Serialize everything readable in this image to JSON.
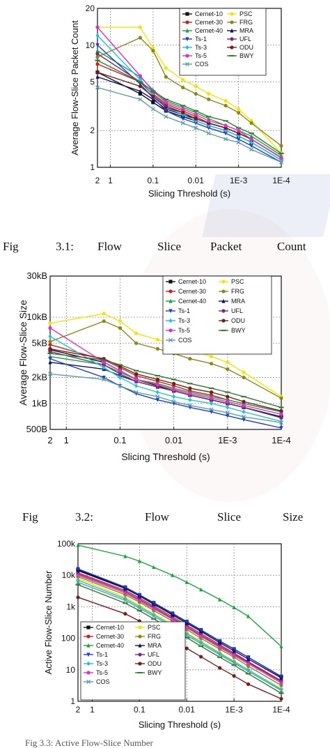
{
  "captions": [
    {
      "words": [
        "Fig",
        "3.1:",
        "Flow",
        "Slice",
        "Packet",
        "Count"
      ]
    },
    {
      "words": [
        "Fig",
        "3.2:",
        "Flow",
        "Slice",
        "Size"
      ]
    },
    {
      "words": [
        "Fig 3.3: Active Flow-Slice Number"
      ]
    }
  ],
  "chart_data": [
    {
      "type": "line",
      "ylabel": "Average Flow-Slice Packet Count",
      "xlabel": "Slicing Threshold (s)",
      "x_scale": "log-reversed",
      "y_scale": "log",
      "ylim": [
        1,
        20
      ],
      "xlim": [
        2,
        0.0001
      ],
      "x_ticks": [
        {
          "v": 2,
          "label": "2"
        },
        {
          "v": 1,
          "label": "1"
        },
        {
          "v": 0.1,
          "label": "0.1"
        },
        {
          "v": 0.01,
          "label": "0.01"
        },
        {
          "v": 0.001,
          "label": "1E-3"
        },
        {
          "v": 0.0001,
          "label": "1E-4"
        }
      ],
      "y_ticks": [
        {
          "v": 1,
          "label": "1"
        },
        {
          "v": 2,
          "label": "2"
        },
        {
          "v": 5,
          "label": "5"
        },
        {
          "v": 10,
          "label": "10"
        },
        {
          "v": 20,
          "label": "20"
        }
      ],
      "grid": true,
      "legend_position": "top-right",
      "legend_columns": 2,
      "x": [
        2,
        0.2,
        0.1,
        0.05,
        0.02,
        0.01,
        0.005,
        0.002,
        0.001,
        0.0005,
        0.0001
      ],
      "series": [
        {
          "name": "Cernet-10",
          "color": "#111111",
          "marker": "square",
          "values": [
            6.0,
            4.0,
            3.4,
            2.9,
            2.6,
            2.4,
            2.2,
            2.0,
            1.8,
            1.6,
            1.15
          ]
        },
        {
          "name": "PSC",
          "color": "#f2e600",
          "marker": "circle",
          "values": [
            14.0,
            14.0,
            9.5,
            6.5,
            5.2,
            4.6,
            4.0,
            3.5,
            3.0,
            2.4,
            1.3
          ]
        },
        {
          "name": "Cernet-30",
          "color": "#d81b1b",
          "marker": "circle",
          "values": [
            7.0,
            5.0,
            4.0,
            3.3,
            2.9,
            2.6,
            2.3,
            2.1,
            1.9,
            1.7,
            1.2
          ]
        },
        {
          "name": "FRG",
          "color": "#8a8a12",
          "marker": "circle",
          "values": [
            8.0,
            11.5,
            9.0,
            5.5,
            4.5,
            4.0,
            3.6,
            3.2,
            2.8,
            2.3,
            1.5
          ]
        },
        {
          "name": "Cernet-40",
          "color": "#14a83c",
          "marker": "triangle",
          "values": [
            9.0,
            5.5,
            4.3,
            3.5,
            3.1,
            2.8,
            2.5,
            2.2,
            2.0,
            1.8,
            1.25
          ]
        },
        {
          "name": "MRA",
          "color": "#101060",
          "marker": "triangle",
          "values": [
            5.5,
            4.2,
            3.6,
            3.0,
            2.7,
            2.5,
            2.3,
            2.1,
            1.9,
            1.7,
            1.2
          ]
        },
        {
          "name": "Ts-1",
          "color": "#1a3be0",
          "marker": "triangle-down",
          "values": [
            10.0,
            4.8,
            3.7,
            2.9,
            2.5,
            2.3,
            2.1,
            1.9,
            1.7,
            1.5,
            1.1
          ]
        },
        {
          "name": "UFL",
          "color": "#7a2a7a",
          "marker": "circle",
          "values": [
            8.5,
            5.0,
            3.9,
            3.2,
            2.8,
            2.5,
            2.3,
            2.1,
            1.9,
            1.7,
            1.2
          ]
        },
        {
          "name": "Ts-3",
          "color": "#16c8d8",
          "marker": "diamond",
          "values": [
            12.0,
            5.2,
            3.9,
            3.1,
            2.7,
            2.4,
            2.2,
            2.0,
            1.8,
            1.6,
            1.15
          ]
        },
        {
          "name": "ODU",
          "color": "#7a1a1a",
          "marker": "circle",
          "values": [
            6.0,
            4.6,
            3.8,
            3.1,
            2.8,
            2.5,
            2.3,
            2.1,
            1.9,
            1.7,
            1.2
          ]
        },
        {
          "name": "Ts-5",
          "color": "#e030d0",
          "marker": "circle",
          "values": [
            14.0,
            5.6,
            4.2,
            3.4,
            3.0,
            2.7,
            2.4,
            2.2,
            2.0,
            1.7,
            1.2
          ]
        },
        {
          "name": "BWY",
          "color": "#2e7a2e",
          "marker": "dash",
          "values": [
            7.5,
            5.0,
            4.2,
            3.6,
            3.2,
            2.9,
            2.6,
            2.4,
            2.1,
            1.9,
            1.3
          ]
        },
        {
          "name": "COS",
          "color": "#5aa0a0",
          "marker": "x",
          "values": [
            4.5,
            3.6,
            3.0,
            2.6,
            2.3,
            2.1,
            1.9,
            1.7,
            1.6,
            1.4,
            1.1
          ]
        }
      ]
    },
    {
      "type": "line",
      "ylabel": "Average Flow-Slice Size",
      "xlabel": "Slicing Threshold (s)",
      "x_scale": "log-reversed",
      "y_scale": "log",
      "ylim": [
        500,
        30000
      ],
      "xlim": [
        2,
        0.0001
      ],
      "x_ticks": [
        {
          "v": 2,
          "label": "2"
        },
        {
          "v": 1,
          "label": "1"
        },
        {
          "v": 0.1,
          "label": "0.1"
        },
        {
          "v": 0.01,
          "label": "0.01"
        },
        {
          "v": 0.001,
          "label": "1E-3"
        },
        {
          "v": 0.0001,
          "label": "1E-4"
        }
      ],
      "y_ticks": [
        {
          "v": 500,
          "label": "500B"
        },
        {
          "v": 1000,
          "label": "1kB"
        },
        {
          "v": 2000,
          "label": "2kB"
        },
        {
          "v": 5000,
          "label": "5kB"
        },
        {
          "v": 10000,
          "label": "10kB"
        },
        {
          "v": 30000,
          "label": "30kB"
        }
      ],
      "grid": true,
      "legend_position": "top-right",
      "legend_columns": 2,
      "x": [
        2,
        0.2,
        0.1,
        0.05,
        0.02,
        0.01,
        0.005,
        0.002,
        0.001,
        0.0005,
        0.0001
      ],
      "series": [
        {
          "name": "Cernet-10",
          "color": "#111111",
          "marker": "square",
          "values": [
            4200,
            3000,
            2400,
            1900,
            1600,
            1400,
            1250,
            1100,
            1000,
            900,
            700
          ]
        },
        {
          "name": "PSC",
          "color": "#f2e600",
          "marker": "circle",
          "values": [
            8500,
            11000,
            9000,
            6500,
            5500,
            4800,
            4200,
            3500,
            3000,
            2300,
            1200
          ]
        },
        {
          "name": "Cernet-30",
          "color": "#d81b1b",
          "marker": "circle",
          "values": [
            4800,
            3200,
            2600,
            2100,
            1800,
            1600,
            1400,
            1250,
            1100,
            1000,
            800
          ]
        },
        {
          "name": "FRG",
          "color": "#8a8a12",
          "marker": "circle",
          "values": [
            5200,
            9000,
            7500,
            5000,
            4300,
            3800,
            3300,
            2900,
            2500,
            2000,
            1150
          ]
        },
        {
          "name": "Cernet-40",
          "color": "#14a83c",
          "marker": "triangle",
          "values": [
            3500,
            2800,
            2300,
            1900,
            1700,
            1500,
            1350,
            1200,
            1100,
            1000,
            800
          ]
        },
        {
          "name": "MRA",
          "color": "#101060",
          "marker": "triangle",
          "values": [
            3000,
            2500,
            2100,
            1800,
            1550,
            1400,
            1250,
            1100,
            1000,
            900,
            700
          ]
        },
        {
          "name": "Ts-1",
          "color": "#1a3be0",
          "marker": "triangle-down",
          "values": [
            3300,
            2000,
            1600,
            1300,
            1100,
            1000,
            900,
            800,
            720,
            650,
            520
          ]
        },
        {
          "name": "UFL",
          "color": "#7a2a7a",
          "marker": "circle",
          "values": [
            4000,
            2800,
            2200,
            1800,
            1550,
            1400,
            1250,
            1100,
            1000,
            900,
            680
          ]
        },
        {
          "name": "Ts-3",
          "color": "#16c8d8",
          "marker": "diamond",
          "values": [
            6000,
            2600,
            2000,
            1600,
            1350,
            1200,
            1100,
            1000,
            900,
            800,
            620
          ]
        },
        {
          "name": "ODU",
          "color": "#7a1a1a",
          "marker": "circle",
          "values": [
            4300,
            3300,
            2700,
            2200,
            1900,
            1700,
            1500,
            1350,
            1200,
            1050,
            820
          ]
        },
        {
          "name": "Ts-5",
          "color": "#e030d0",
          "marker": "circle",
          "values": [
            7500,
            3000,
            2400,
            1900,
            1650,
            1450,
            1300,
            1150,
            1050,
            950,
            750
          ]
        },
        {
          "name": "BWY",
          "color": "#2e7a2e",
          "marker": "dash",
          "values": [
            3800,
            3200,
            2800,
            2400,
            2100,
            1900,
            1700,
            1500,
            1350,
            1200,
            900
          ]
        },
        {
          "name": "COS",
          "color": "#5aa0a0",
          "marker": "x",
          "values": [
            2200,
            1900,
            1600,
            1350,
            1200,
            1050,
            950,
            850,
            780,
            700,
            600
          ]
        }
      ]
    },
    {
      "type": "line",
      "ylabel": "Active Flow-Slice Number",
      "xlabel": "Slicing Threshold (s)",
      "x_scale": "log-reversed",
      "y_scale": "log",
      "ylim": [
        1,
        100000
      ],
      "xlim": [
        2,
        0.0001
      ],
      "x_ticks": [
        {
          "v": 2,
          "label": "2"
        },
        {
          "v": 1,
          "label": "1"
        },
        {
          "v": 0.1,
          "label": "0.1"
        },
        {
          "v": 0.01,
          "label": "0.01"
        },
        {
          "v": 0.001,
          "label": "1E-3"
        },
        {
          "v": 0.0001,
          "label": "1E-4"
        }
      ],
      "y_ticks": [
        {
          "v": 1,
          "label": "1"
        },
        {
          "v": 10,
          "label": "10"
        },
        {
          "v": 100,
          "label": "100"
        },
        {
          "v": 1000,
          "label": "1k"
        },
        {
          "v": 10000,
          "label": "10k"
        },
        {
          "v": 100000,
          "label": "100k"
        }
      ],
      "grid": true,
      "legend_position": "bottom-left",
      "legend_columns": 2,
      "x": [
        2,
        0.2,
        0.1,
        0.05,
        0.02,
        0.01,
        0.005,
        0.002,
        0.001,
        0.0005,
        0.0001
      ],
      "series": [
        {
          "name": "Cernet-10",
          "color": "#111111",
          "marker": "square",
          "values": [
            15000,
            4000,
            2300,
            1300,
            600,
            330,
            180,
            80,
            45,
            25,
            6
          ]
        },
        {
          "name": "PSC",
          "color": "#f2e600",
          "marker": "circle",
          "values": [
            8000,
            2000,
            1100,
            600,
            280,
            150,
            80,
            35,
            19,
            10,
            2.5
          ]
        },
        {
          "name": "Cernet-30",
          "color": "#d81b1b",
          "marker": "circle",
          "values": [
            12000,
            3300,
            1900,
            1050,
            480,
            260,
            140,
            62,
            34,
            18,
            4.5
          ]
        },
        {
          "name": "FRG",
          "color": "#8a8a12",
          "marker": "circle",
          "values": [
            9000,
            2400,
            1400,
            760,
            350,
            190,
            100,
            45,
            25,
            13,
            3.2
          ]
        },
        {
          "name": "Cernet-40",
          "color": "#14a83c",
          "marker": "triangle",
          "values": [
            90000,
            40000,
            28000,
            18000,
            10000,
            6000,
            3500,
            1700,
            950,
            500,
            55
          ]
        },
        {
          "name": "MRA",
          "color": "#101060",
          "marker": "triangle",
          "values": [
            14000,
            3800,
            2200,
            1200,
            550,
            300,
            165,
            72,
            40,
            22,
            5.5
          ]
        },
        {
          "name": "Ts-1",
          "color": "#1a3be0",
          "marker": "triangle-down",
          "values": [
            16000,
            4200,
            2400,
            1350,
            620,
            340,
            185,
            82,
            46,
            25,
            6.2
          ]
        },
        {
          "name": "UFL",
          "color": "#7a2a7a",
          "marker": "circle",
          "values": [
            11000,
            3000,
            1700,
            950,
            430,
            235,
            125,
            56,
            31,
            17,
            4.2
          ]
        },
        {
          "name": "Ts-3",
          "color": "#16c8d8",
          "marker": "diamond",
          "values": [
            7000,
            1800,
            1000,
            560,
            255,
            140,
            75,
            33,
            18,
            10,
            2.4
          ]
        },
        {
          "name": "ODU",
          "color": "#7a1a1a",
          "marker": "circle",
          "values": [
            2000,
            600,
            350,
            190,
            88,
            48,
            26,
            11.5,
            6.4,
            3.5,
            1.2
          ]
        },
        {
          "name": "Ts-5",
          "color": "#e030d0",
          "marker": "circle",
          "values": [
            10000,
            2700,
            1550,
            860,
            400,
            215,
            115,
            51,
            28,
            15.5,
            3.8
          ]
        },
        {
          "name": "BWY",
          "color": "#2e7a2e",
          "marker": "dash",
          "values": [
            5000,
            1300,
            750,
            410,
            190,
            105,
            56,
            25,
            14,
            7.5,
            1.8
          ]
        },
        {
          "name": "COS",
          "color": "#5aa0a0",
          "marker": "x",
          "values": [
            6000,
            1600,
            900,
            500,
            230,
            125,
            67,
            30,
            16.5,
            9,
            2.2
          ]
        }
      ]
    }
  ]
}
